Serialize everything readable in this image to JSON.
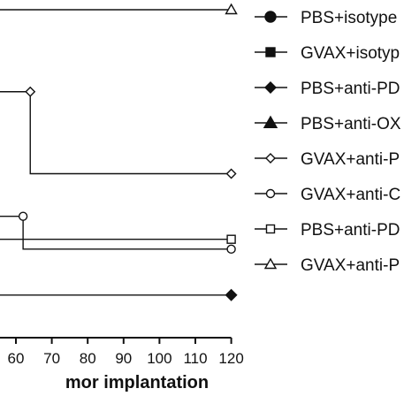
{
  "chart_data": {
    "type": "line",
    "subtype": "kaplan-meier step curves (cropped)",
    "xlabel": "mor implantation",
    "x_ticks": [
      60,
      70,
      80,
      90,
      100,
      110,
      120
    ],
    "xlim": [
      45,
      122
    ],
    "grid": false,
    "legend_position": "right",
    "series": [
      {
        "name": "PBS+isotype",
        "marker": "filled-circle",
        "steps": []
      },
      {
        "name": "GVAX+isotyp",
        "marker": "filled-square",
        "steps": []
      },
      {
        "name": "PBS+anti-PD",
        "marker": "filled-diamond",
        "steps": [
          [
            45,
            13
          ],
          [
            120,
            13
          ]
        ],
        "end_marker_x": 120
      },
      {
        "name": "PBS+anti-OX",
        "marker": "filled-triangle",
        "steps": []
      },
      {
        "name": "GVAX+anti-P",
        "marker": "open-diamond",
        "steps": [
          [
            45,
            75
          ],
          [
            64,
            75
          ],
          [
            64,
            50
          ],
          [
            120,
            50
          ]
        ],
        "markers_at": [
          64,
          120
        ]
      },
      {
        "name": "GVAX+anti-C",
        "marker": "open-circle",
        "steps": [
          [
            45,
            37
          ],
          [
            62,
            37
          ],
          [
            62,
            27
          ],
          [
            120,
            27
          ]
        ],
        "markers_at": [
          62,
          120
        ]
      },
      {
        "name": "PBS+anti-PD",
        "marker": "open-square",
        "steps": [
          [
            45,
            30
          ],
          [
            120,
            30
          ]
        ],
        "markers_at": [
          120
        ]
      },
      {
        "name": "GVAX+anti-P",
        "marker": "open-triangle",
        "steps": [
          [
            45,
            100
          ],
          [
            120,
            100
          ]
        ],
        "markers_at": [
          120
        ]
      }
    ]
  }
}
